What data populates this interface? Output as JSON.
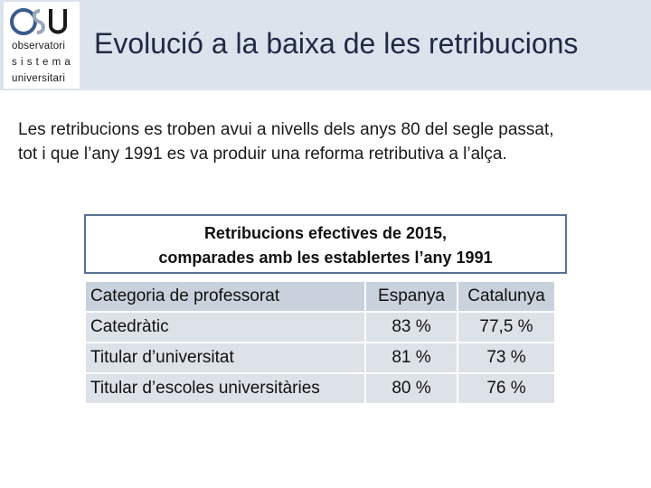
{
  "header": {
    "logo": {
      "line1": "observatori",
      "line2": "sistema",
      "line3": "universitari"
    },
    "title": "Evolució a la baixa de les retribucions"
  },
  "intro": {
    "line1": "Les retribucions es troben avui a nivells dels anys 80 del segle passat,",
    "line2": "tot i que l’any 1991 es va produir una reforma retributiva a l’alça."
  },
  "caption": {
    "line1": "Retribucions efectives de 2015,",
    "line2": "comparades amb les establertes l’any 1991"
  },
  "table": {
    "headers": [
      "Categoria de professorat",
      "Espanya",
      "Catalunya"
    ],
    "rows": [
      [
        "Catedràtic",
        "83 %",
        "77,5 %"
      ],
      [
        "Titular d’universitat",
        "81 %",
        "73 %"
      ],
      [
        "Titular d’escoles universitàries",
        "80 %",
        "76 %"
      ]
    ]
  },
  "colors": {
    "header_bg": "#dde3ec",
    "title": "#1f2a44",
    "logo_accent": "#3a5a8c",
    "table_row": "#dde1e8"
  }
}
